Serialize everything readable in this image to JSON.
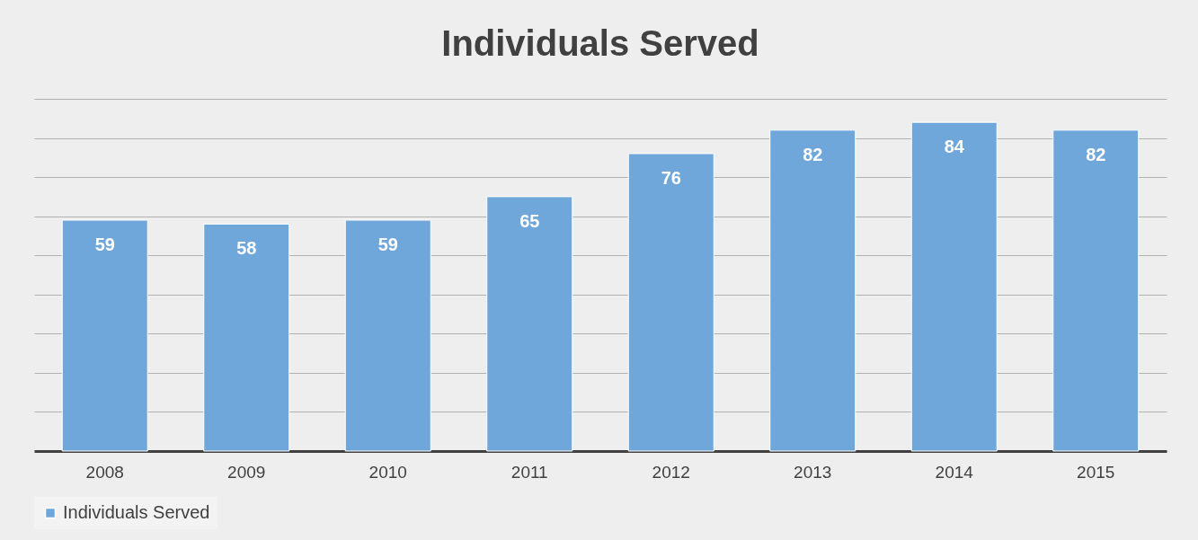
{
  "chart_data": {
    "type": "bar",
    "title": "Individuals Served",
    "categories": [
      "2008",
      "2009",
      "2010",
      "2011",
      "2012",
      "2013",
      "2014",
      "2015"
    ],
    "series": [
      {
        "name": "Individuals Served",
        "color": "#70a7db",
        "values": [
          59,
          58,
          59,
          65,
          76,
          82,
          84,
          82
        ]
      }
    ],
    "ylim": [
      0,
      90
    ],
    "yticks": [
      {
        "value": 0,
        "label": null
      },
      {
        "value": 10,
        "label": null
      },
      {
        "value": 20,
        "label": null
      },
      {
        "value": 30,
        "label": null
      },
      {
        "value": 40,
        "label": null
      },
      {
        "value": 50,
        "label": null
      },
      {
        "value": 60,
        "label": null
      },
      {
        "value": 70,
        "label": null
      },
      {
        "value": 80,
        "label": null
      },
      {
        "value": 90,
        "label": null
      }
    ],
    "tick_labels": "x",
    "grid": "y",
    "data_labels": true,
    "legend": "bottom"
  }
}
